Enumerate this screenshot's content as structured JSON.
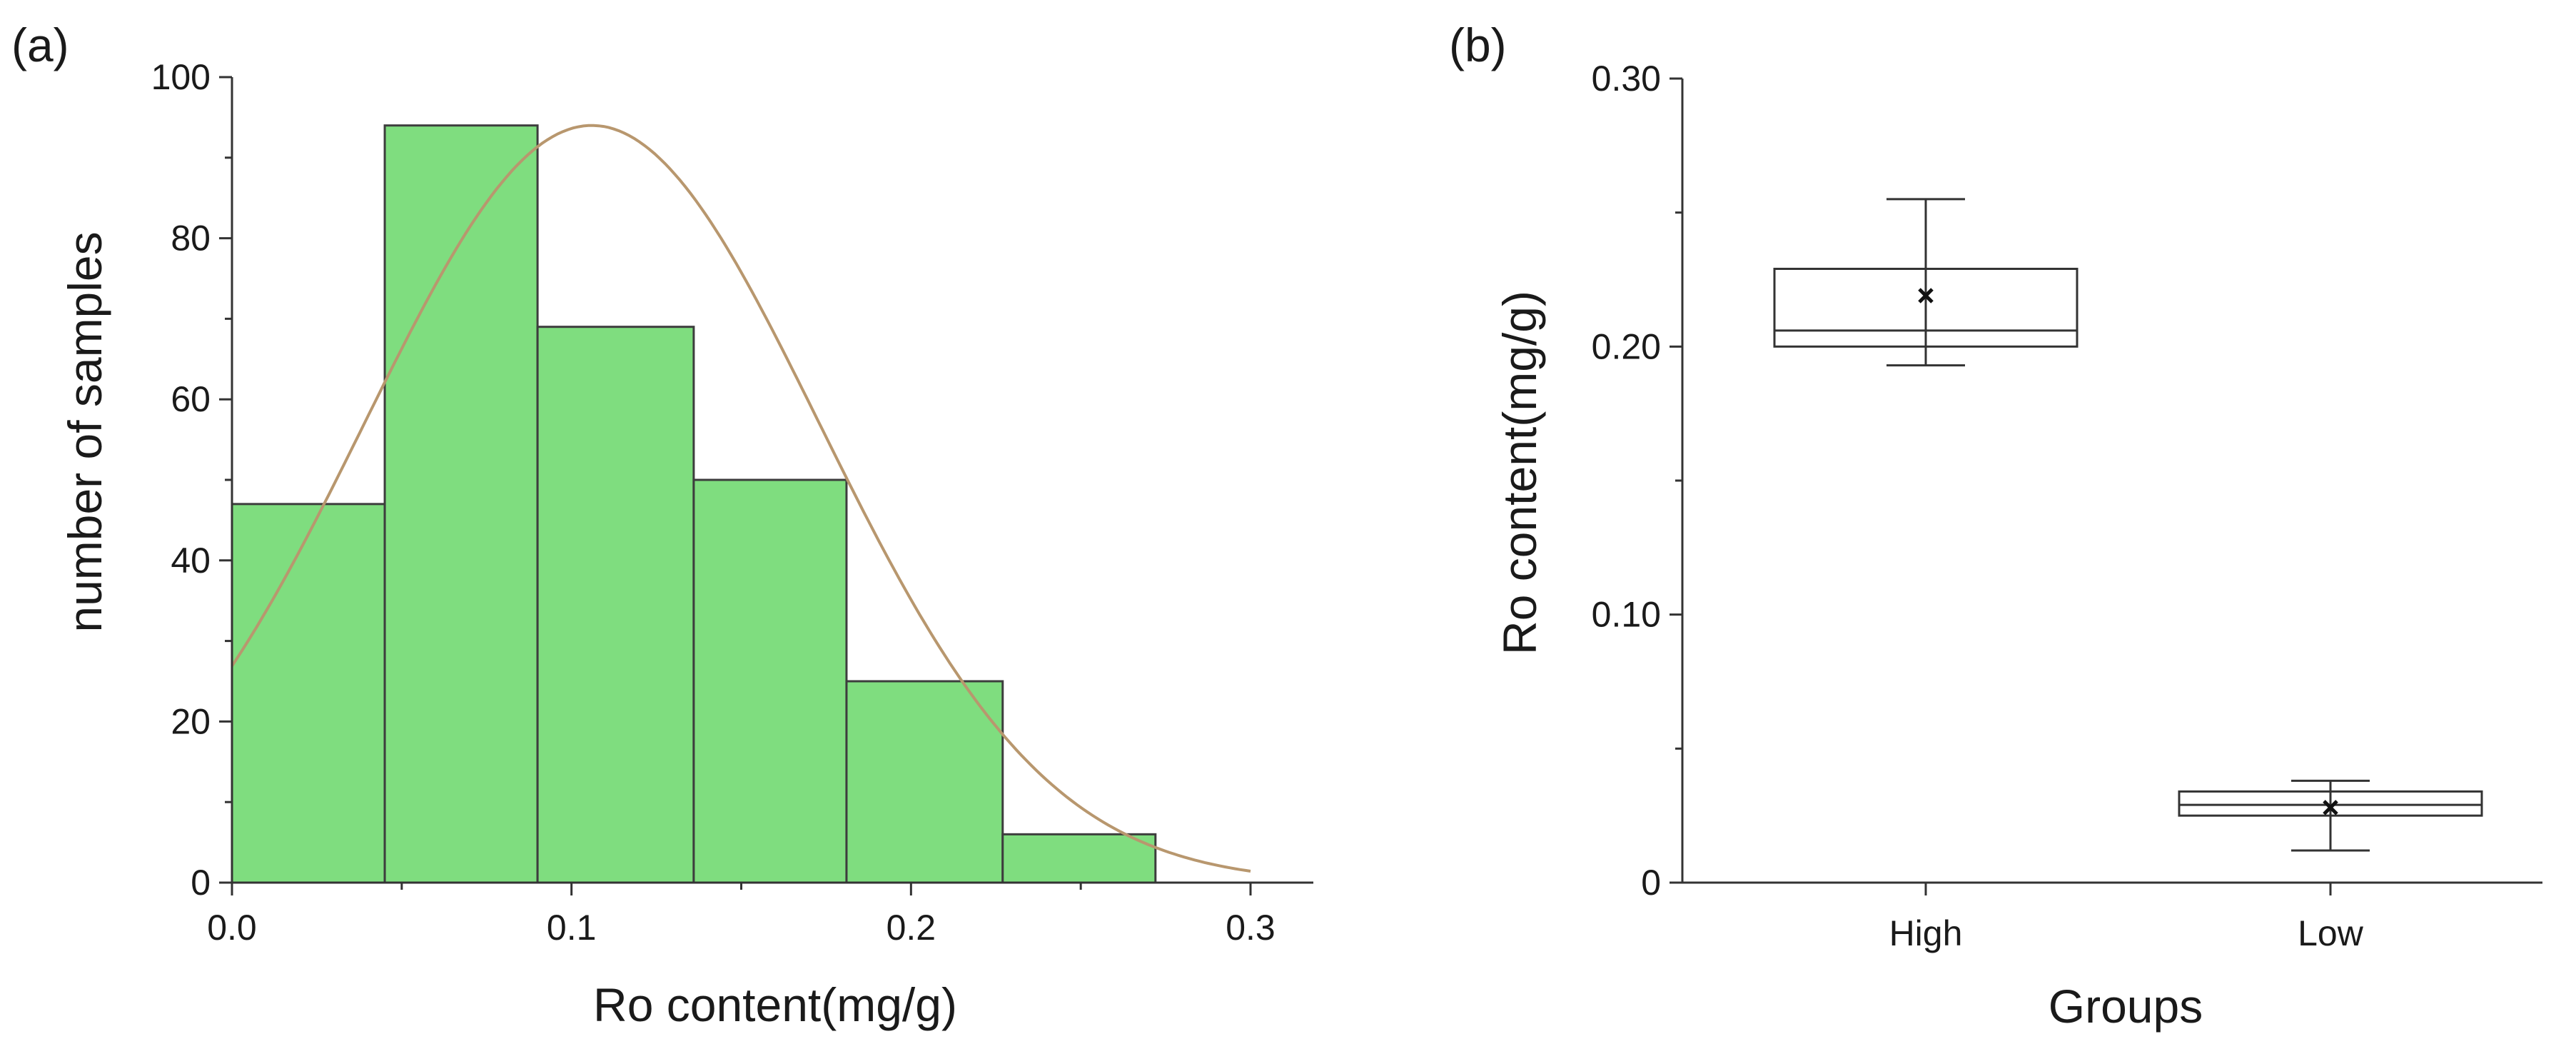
{
  "chart_data": [
    {
      "type": "bar",
      "panel_label": "(a)",
      "title": "",
      "xlabel": "Ro content(mg/g)",
      "ylabel": "number of samples",
      "xlim": [
        0,
        0.32
      ],
      "ylim": [
        0,
        100
      ],
      "xticks": [
        0.0,
        0.1,
        0.2,
        0.3
      ],
      "xtick_labels": [
        "0.0",
        "0.1",
        "0.2",
        "0.3"
      ],
      "yticks": [
        0,
        20,
        40,
        60,
        80,
        100
      ],
      "ytick_labels": [
        "0",
        "20",
        "40",
        "60",
        "80",
        "100"
      ],
      "bin_edges": [
        0.0,
        0.045,
        0.09,
        0.136,
        0.181,
        0.227,
        0.272
      ],
      "values": [
        47,
        94,
        69,
        50,
        25,
        6
      ],
      "bar_color": "#7FDD7F",
      "fit_curve": {
        "type": "normal",
        "peak": 94,
        "mean": 0.106,
        "sd": 0.067,
        "x_range": [
          0.0,
          0.3
        ],
        "color": "#B8976E"
      }
    },
    {
      "type": "box",
      "panel_label": "(b)",
      "title": "",
      "xlabel": "Groups",
      "ylabel": "Ro content(mg/g)",
      "ylim": [
        0,
        0.3
      ],
      "yticks": [
        0,
        0.1,
        0.2,
        0.3
      ],
      "ytick_labels": [
        "0",
        "0.10",
        "0.20",
        "0.30"
      ],
      "categories": [
        "High",
        "Low"
      ],
      "boxes": [
        {
          "name": "High",
          "whisker_low": 0.193,
          "q1": 0.2,
          "median": 0.206,
          "q3": 0.229,
          "whisker_high": 0.255,
          "mean": 0.219,
          "color": "#FF8A99"
        },
        {
          "name": "Low",
          "whisker_low": 0.012,
          "q1": 0.025,
          "median": 0.029,
          "q3": 0.034,
          "whisker_high": 0.038,
          "mean": 0.028,
          "color": "#6DB3F2"
        }
      ]
    }
  ]
}
